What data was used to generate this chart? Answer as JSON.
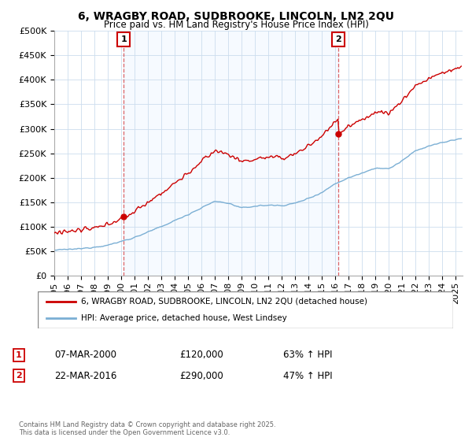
{
  "title": "6, WRAGBY ROAD, SUDBROOKE, LINCOLN, LN2 2QU",
  "subtitle": "Price paid vs. HM Land Registry's House Price Index (HPI)",
  "ylim": [
    0,
    500000
  ],
  "yticks": [
    0,
    50000,
    100000,
    150000,
    200000,
    250000,
    300000,
    350000,
    400000,
    450000,
    500000
  ],
  "ytick_labels": [
    "£0",
    "£50K",
    "£100K",
    "£150K",
    "£200K",
    "£250K",
    "£300K",
    "£350K",
    "£400K",
    "£450K",
    "£500K"
  ],
  "xlim_start": 1995.0,
  "xlim_end": 2025.5,
  "marker1_x": 2000.18,
  "marker1_y": 120000,
  "marker2_x": 2016.22,
  "marker2_y": 290000,
  "marker1_date": "07-MAR-2000",
  "marker1_price": "£120,000",
  "marker1_hpi": "63% ↑ HPI",
  "marker2_date": "22-MAR-2016",
  "marker2_price": "£290,000",
  "marker2_hpi": "47% ↑ HPI",
  "line_color_property": "#cc0000",
  "line_color_hpi": "#7bafd4",
  "shade_color": "#ddeeff",
  "legend_label_property": "6, WRAGBY ROAD, SUDBROOKE, LINCOLN, LN2 2QU (detached house)",
  "legend_label_hpi": "HPI: Average price, detached house, West Lindsey",
  "footer": "Contains HM Land Registry data © Crown copyright and database right 2025.\nThis data is licensed under the Open Government Licence v3.0.",
  "background_color": "#ffffff",
  "grid_color": "#ccddee",
  "annotation_box_color": "#cc0000",
  "spine_color": "#aaaaaa"
}
